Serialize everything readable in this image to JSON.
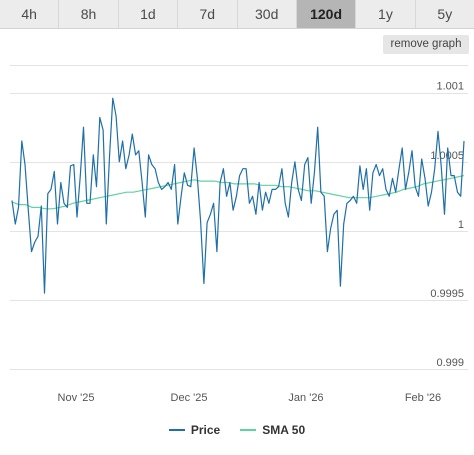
{
  "tabs": [
    {
      "label": "4h",
      "active": false
    },
    {
      "label": "8h",
      "active": false
    },
    {
      "label": "1d",
      "active": false
    },
    {
      "label": "7d",
      "active": false
    },
    {
      "label": "30d",
      "active": false
    },
    {
      "label": "120d",
      "active": true
    },
    {
      "label": "1y",
      "active": false
    },
    {
      "label": "5y",
      "active": false
    }
  ],
  "remove_graph_label": "remove graph",
  "colors": {
    "price": "#1f6fa8",
    "sma": "#5fd3a0",
    "grid": "#e3e3e3",
    "tab_active": "#b5b5b5",
    "tab": "#ececec"
  },
  "chart_data": {
    "type": "line",
    "x_ticks": [
      "Nov '25",
      "Dec '25",
      "Jan '26",
      "Feb '26"
    ],
    "y_ticks": [
      "1.001",
      "1.0005",
      "1",
      "0.9995",
      "0.999"
    ],
    "ylim": [
      0.999,
      1.001
    ],
    "grid": true,
    "legend_position": "bottom",
    "series": [
      {
        "name": "Price",
        "values": [
          1.00022,
          1.00005,
          1.00017,
          1.00065,
          1.00048,
          1.00015,
          0.99985,
          0.99992,
          0.99996,
          1.00018,
          0.99955,
          1.00027,
          1.0003,
          1.00043,
          1.00005,
          1.00035,
          1.0002,
          1.00017,
          1.00047,
          1.00048,
          1.0001,
          1.0004,
          1.00075,
          1.0002,
          1.0002,
          1.00055,
          1.00032,
          1.00082,
          1.00073,
          1.00005,
          1.00055,
          1.00096,
          1.00083,
          1.0005,
          1.00065,
          1.00045,
          1.00055,
          1.0007,
          1.00055,
          1.00058,
          1.00035,
          1.0001,
          1.00055,
          1.00048,
          1.00045,
          1.00035,
          1.0003,
          1.00032,
          1.00035,
          1.0003,
          1.00048,
          1.00005,
          1.00025,
          1.00042,
          1.00033,
          1.00032,
          1.0006,
          1.00038,
          1.00007,
          0.99962,
          1.00006,
          1.00012,
          1.0002,
          0.99985,
          1.00035,
          1.00045,
          1.00025,
          1.00035,
          1.00015,
          1.00025,
          1.0004,
          1.00045,
          1.00045,
          1.0002,
          1.00025,
          1.00012,
          1.00035,
          1.00015,
          1.00028,
          1.0002,
          1.0003,
          1.0003,
          1.00032,
          1.00045,
          1.0002,
          1.0001,
          1.00035,
          1.0005,
          1.0003,
          1.00022,
          1.00048,
          1.00053,
          1.0002,
          1.00042,
          1.00075,
          1.00028,
          1.00025,
          0.99985,
          1.00002,
          1.00012,
          1.00015,
          0.9996,
          1.00005,
          1.0002,
          1.00022,
          1.00025,
          1.0002,
          1.00047,
          1.0003,
          1.00045,
          1.00015,
          1.00042,
          1.00048,
          1.0004,
          1.00045,
          1.0003,
          1.00025,
          1.00038,
          1.00028,
          1.00045,
          1.0006,
          1.0003,
          1.00042,
          1.00058,
          1.00032,
          1.00025,
          1.00052,
          1.00038,
          1.00018,
          1.00028,
          1.00045,
          1.00072,
          1.00047,
          1.00012,
          1.0006,
          1.0004,
          1.0004,
          1.00028,
          1.00025,
          1.00065
        ]
      },
      {
        "name": "SMA 50",
        "values": [
          1.00021,
          1.00019,
          1.00019,
          1.00017,
          1.00017,
          1.00016,
          1.00016,
          1.00017,
          1.00018,
          1.0002,
          1.00021,
          1.00022,
          1.00023,
          1.00024,
          1.00025,
          1.00026,
          1.00027,
          1.00028,
          1.00028,
          1.00029,
          1.0003,
          1.00031,
          1.00032,
          1.00033,
          1.00034,
          1.00035,
          1.00036,
          1.00037,
          1.00036,
          1.00036,
          1.00036,
          1.00035,
          1.00035,
          1.00034,
          1.00034,
          1.00034,
          1.00034,
          1.00033,
          1.00033,
          1.00033,
          1.00032,
          1.00032,
          1.00031,
          1.0003,
          1.00029,
          1.00029,
          1.00028,
          1.00027,
          1.00026,
          1.00025,
          1.00024,
          1.00024,
          1.00024,
          1.00024,
          1.00025,
          1.00026,
          1.00027,
          1.00028,
          1.0003,
          1.00031,
          1.00032,
          1.00034,
          1.00035,
          1.00036,
          1.00037,
          1.00038,
          1.00039,
          1.0004
        ]
      }
    ]
  }
}
